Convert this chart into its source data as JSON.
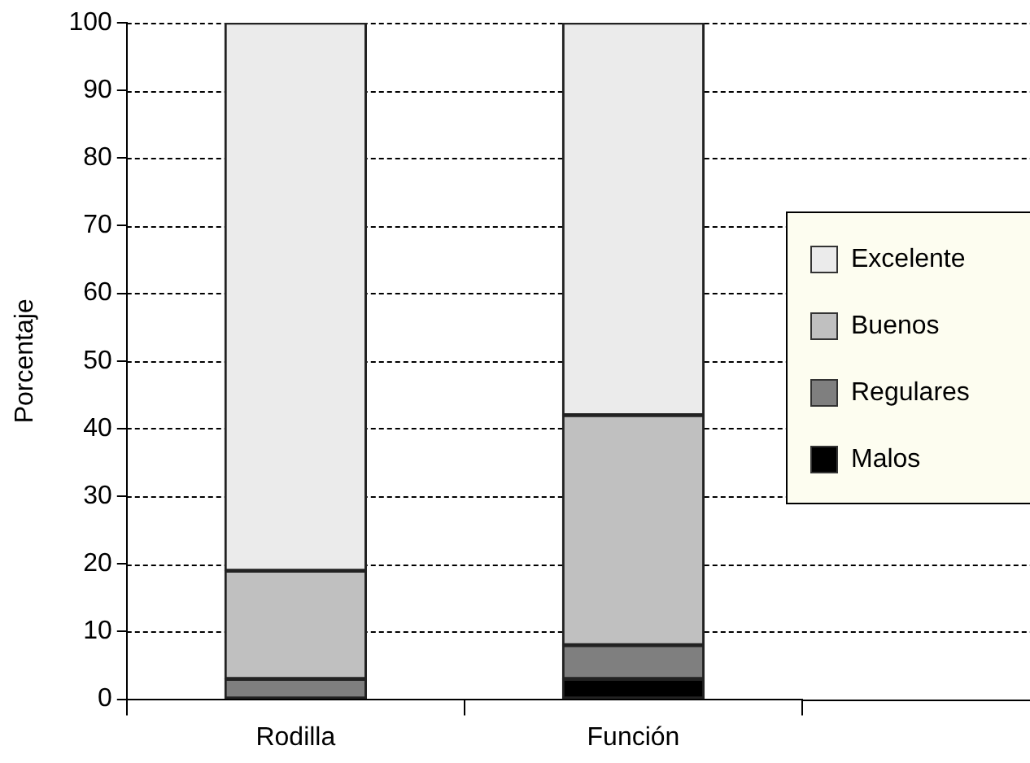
{
  "chart_data": {
    "type": "bar",
    "stacked": true,
    "ylabel": "Porcentaje",
    "categories": [
      "Rodilla",
      "Función"
    ],
    "series": [
      {
        "name": "Malos",
        "color": "#000000",
        "values": [
          0,
          3
        ]
      },
      {
        "name": "Regulares",
        "color": "#7f7f7f",
        "values": [
          3,
          5
        ]
      },
      {
        "name": "Buenos",
        "color": "#c0c0c0",
        "values": [
          16,
          34
        ]
      },
      {
        "name": "Excelente",
        "color": "#ebebeb",
        "values": [
          81,
          58
        ]
      }
    ],
    "ylim": [
      0,
      100
    ],
    "yticks": [
      0,
      10,
      20,
      30,
      40,
      50,
      60,
      70,
      80,
      90,
      100
    ],
    "grid": "y",
    "legend": "right"
  }
}
